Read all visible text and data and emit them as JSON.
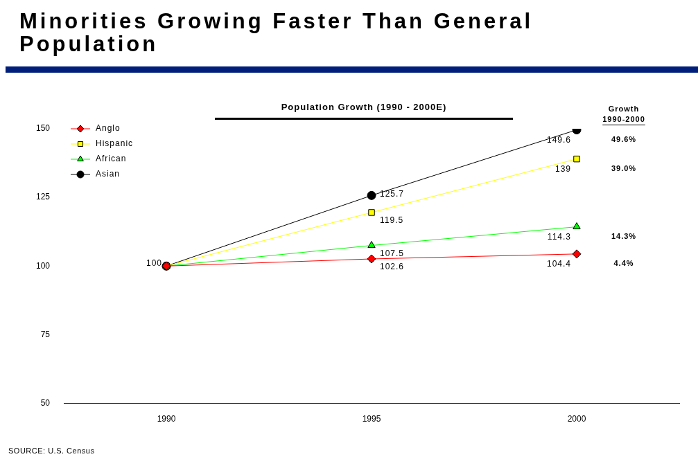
{
  "chart_data": {
    "type": "line",
    "title": "Minorities Growing Faster Than General Population",
    "subtitle": "Population Growth (1990 - 2000E)",
    "categories": [
      "1990",
      "1995",
      "2000"
    ],
    "series": [
      {
        "name": "Anglo",
        "color": "#ff0000",
        "marker": "diamond",
        "values": [
          100,
          102.6,
          104.4
        ],
        "value_labels": [
          null,
          "102.6",
          "104.4"
        ]
      },
      {
        "name": "Hispanic",
        "color": "#ffff00",
        "marker": "square",
        "values": [
          100,
          119.5,
          139
        ],
        "value_labels": [
          null,
          "119.5",
          "139"
        ]
      },
      {
        "name": "African",
        "color": "#00ff00",
        "marker": "triangle",
        "values": [
          100,
          107.5,
          114.3
        ],
        "value_labels": [
          null,
          "107.5",
          "114.3"
        ]
      },
      {
        "name": "Asian",
        "color": "#000000",
        "marker": "circle",
        "values": [
          100,
          125.7,
          149.6
        ],
        "value_labels": [
          "100",
          "125.7",
          "149.6"
        ]
      }
    ],
    "ylim": [
      50,
      150
    ],
    "yticks": [
      50,
      75,
      100,
      125,
      150
    ],
    "grid": false,
    "legend": "top left",
    "line_style": "solid",
    "annotations": [
      "Growth",
      "1990-2000",
      "49.6%",
      "39.0%",
      "14.3%",
      "4.4%",
      "SOURCE: U.S. Census"
    ]
  }
}
